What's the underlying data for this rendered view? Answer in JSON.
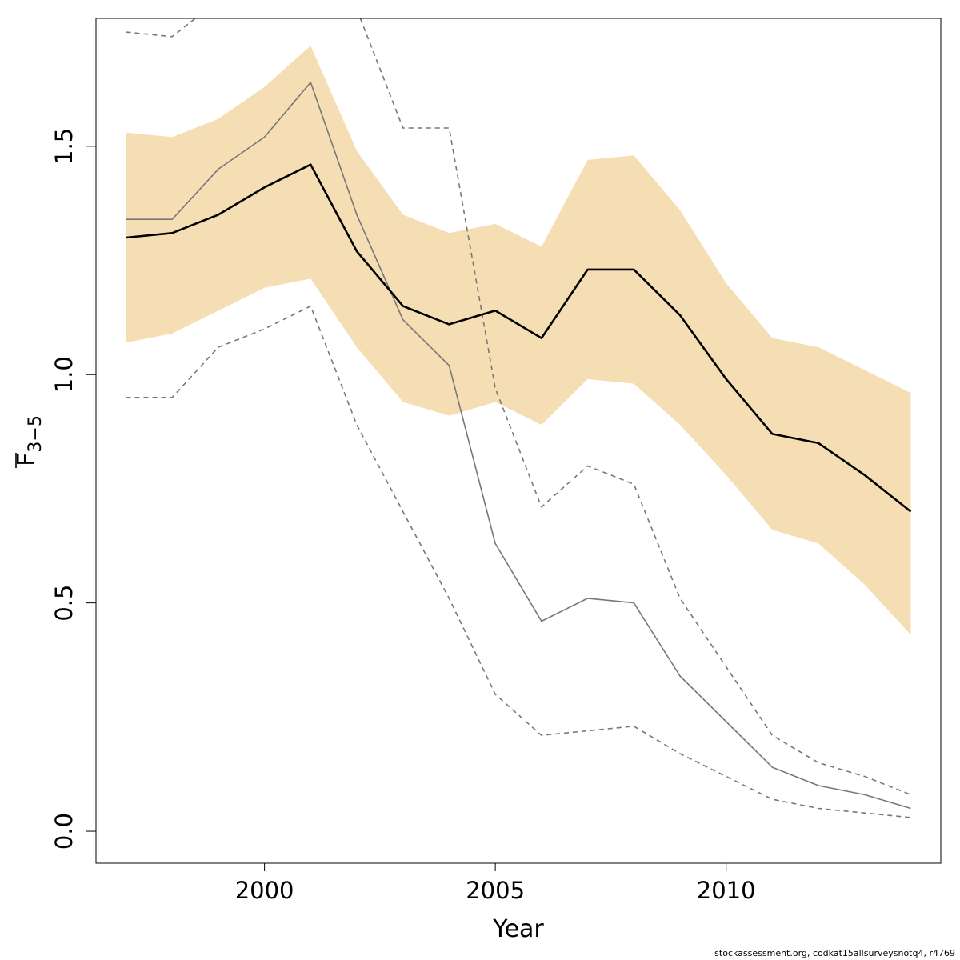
{
  "chart_data": {
    "type": "line",
    "xlabel": "Year",
    "ylabel": "F",
    "ylabel_sub": "3−5",
    "xlim": [
      1996.35,
      2014.65
    ],
    "ylim": [
      -0.07,
      1.78
    ],
    "xticks": [
      2000,
      2005,
      2010
    ],
    "yticks": [
      "0.0",
      "0.5",
      "1.0",
      "1.5"
    ],
    "x": [
      1997,
      1998,
      1999,
      2000,
      2001,
      2002,
      2003,
      2004,
      2005,
      2006,
      2007,
      2008,
      2009,
      2010,
      2011,
      2012,
      2013,
      2014
    ],
    "band": {
      "color": "#f5deb3",
      "upper": [
        1.53,
        1.52,
        1.56,
        1.63,
        1.72,
        1.49,
        1.35,
        1.31,
        1.33,
        1.28,
        1.47,
        1.48,
        1.36,
        1.2,
        1.08,
        1.06,
        1.01,
        0.96
      ],
      "lower": [
        1.07,
        1.09,
        1.14,
        1.19,
        1.21,
        1.06,
        0.94,
        0.91,
        0.94,
        0.89,
        0.99,
        0.98,
        0.89,
        0.78,
        0.66,
        0.63,
        0.54,
        0.43
      ]
    },
    "series": [
      {
        "role": "estimate",
        "color": "#000000",
        "style": "solid",
        "values": [
          1.3,
          1.31,
          1.35,
          1.41,
          1.46,
          1.27,
          1.15,
          1.11,
          1.14,
          1.08,
          1.23,
          1.23,
          1.13,
          0.99,
          0.87,
          0.85,
          0.78,
          0.7
        ]
      },
      {
        "role": "alternative-estimate",
        "color": "#777777",
        "style": "solid",
        "values": [
          1.34,
          1.34,
          1.45,
          1.52,
          1.64,
          1.35,
          1.12,
          1.02,
          0.63,
          0.46,
          0.51,
          0.5,
          0.34,
          0.24,
          0.14,
          0.1,
          0.08,
          0.05
        ]
      },
      {
        "role": "alternative-upper",
        "color": "#777777",
        "style": "dashed",
        "values": [
          1.75,
          1.74,
          1.82,
          1.9,
          1.95,
          1.8,
          1.54,
          1.54,
          0.97,
          0.71,
          0.8,
          0.76,
          0.51,
          0.36,
          0.21,
          0.15,
          0.12,
          0.08
        ]
      },
      {
        "role": "alternative-lower",
        "color": "#777777",
        "style": "dashed",
        "values": [
          0.95,
          0.95,
          1.06,
          1.1,
          1.15,
          0.89,
          0.7,
          0.51,
          0.3,
          0.21,
          0.22,
          0.23,
          0.17,
          0.12,
          0.07,
          0.05,
          0.04,
          0.03
        ]
      }
    ]
  },
  "footer": {
    "text": "stockassessment.org, codkat15allsurveysnotq4, r4769"
  }
}
